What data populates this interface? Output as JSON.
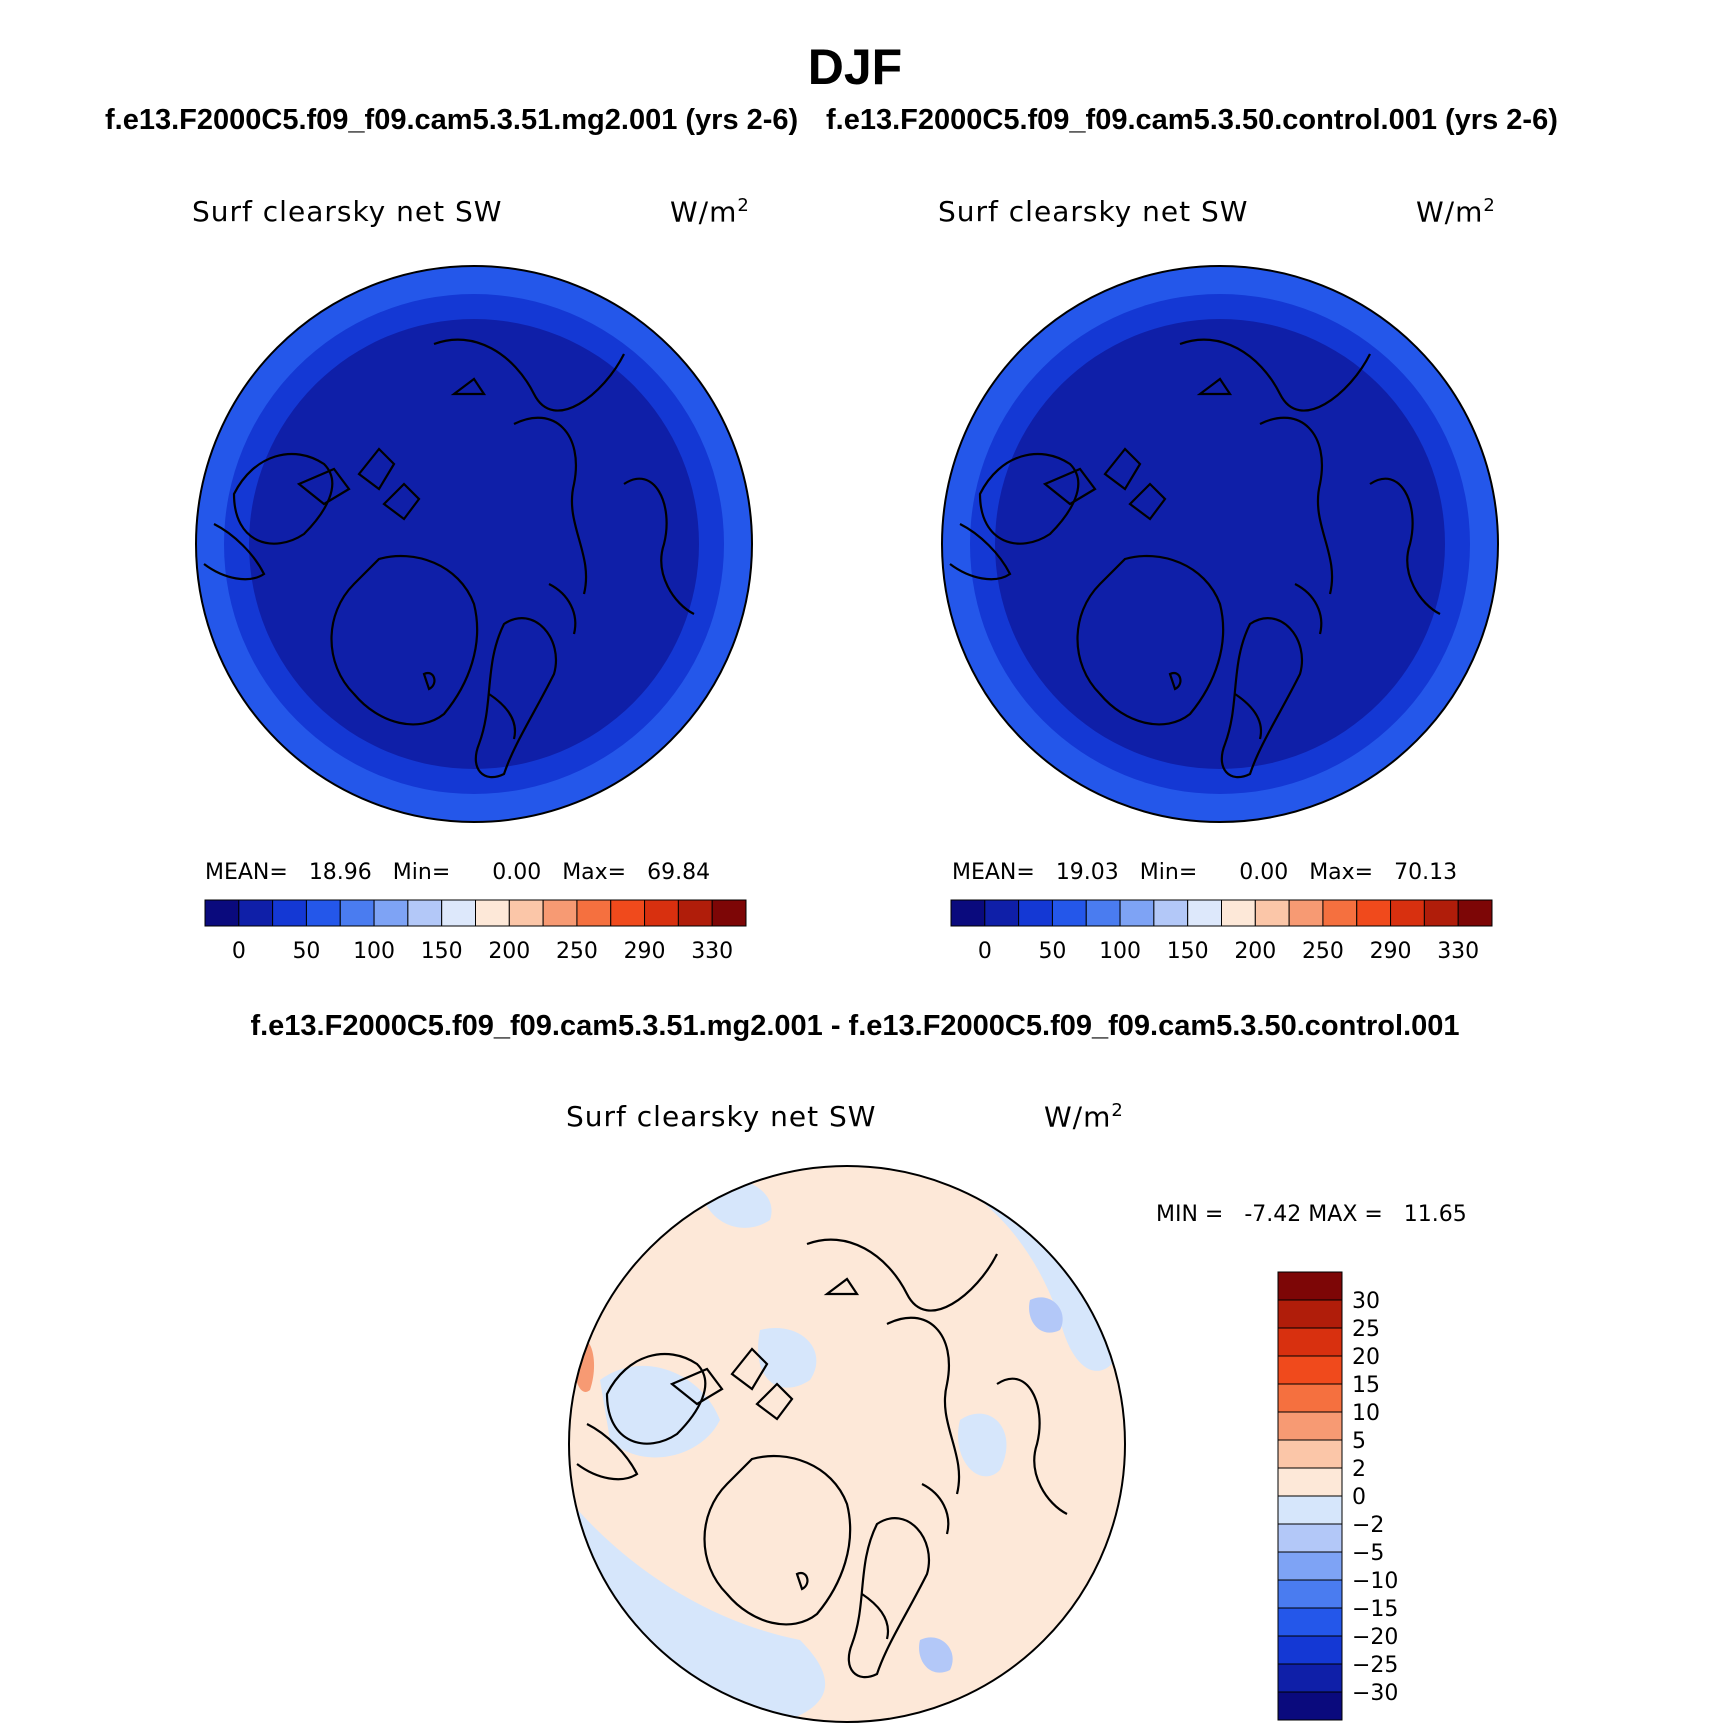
{
  "title": "DJF",
  "case_a": "f.e13.F2000C5.f09_f09.cam5.3.51.mg2.001 (yrs 2-6)",
  "case_b": "f.e13.F2000C5.f09_f09.cam5.3.50.control.001 (yrs 2-6)",
  "diff_title": "f.e13.F2000C5.f09_f09.cam5.3.51.mg2.001 - f.e13.F2000C5.f09_f09.cam5.3.50.control.001",
  "variable": "Surf clearsky net SW",
  "units": "W/m",
  "units_sup": "2",
  "panel_a": {
    "mean_label": "MEAN=",
    "mean": "18.96",
    "min_label": "Min=",
    "min": "0.00",
    "max_label": "Max=",
    "max": "69.84"
  },
  "panel_b": {
    "mean_label": "MEAN=",
    "mean": "19.03",
    "min_label": "Min=",
    "min": "0.00",
    "max_label": "Max=",
    "max": "70.13"
  },
  "diff_stats": {
    "min_label": "MIN =",
    "min": "-7.42",
    "max_label": "MAX =",
    "max": "11.65"
  },
  "abs_colors": [
    "#0a0a7d",
    "#0f1fa8",
    "#1438d4",
    "#2457ea",
    "#4a7cf0",
    "#7ea3f5",
    "#b3c8f8",
    "#dde8fb",
    "#fde8d8",
    "#fbc6a8",
    "#f79a73",
    "#f5703f",
    "#f04a1c",
    "#d8300f",
    "#b01d0a",
    "#7d0606"
  ],
  "abs_ticks": [
    "0",
    "50",
    "100",
    "150",
    "200",
    "250",
    "290",
    "330"
  ],
  "diff_colors": [
    "#0a0a7d",
    "#0f1fa8",
    "#1438d4",
    "#2457ea",
    "#4a7cf0",
    "#7ea3f5",
    "#b3c8f8",
    "#d6e6fb",
    "#fde8d8",
    "#fbc6a8",
    "#f79a73",
    "#f5703f",
    "#f04a1c",
    "#d8300f",
    "#b01d0a",
    "#7d0606"
  ],
  "diff_ticks": [
    "-30",
    "-25",
    "-20",
    "-15",
    "-10",
    "-5",
    "-2",
    "0",
    "2",
    "5",
    "10",
    "15",
    "20",
    "25",
    "30"
  ],
  "field_colors": {
    "polar": "#0f1fa8",
    "mid": "#1438d4",
    "outer": "#2457ea",
    "diff_neg": "#d6e6fb",
    "diff_pos": "#fde8d8",
    "diff_neg2": "#b3c8f8",
    "diff_pos2": "#f79a73"
  }
}
